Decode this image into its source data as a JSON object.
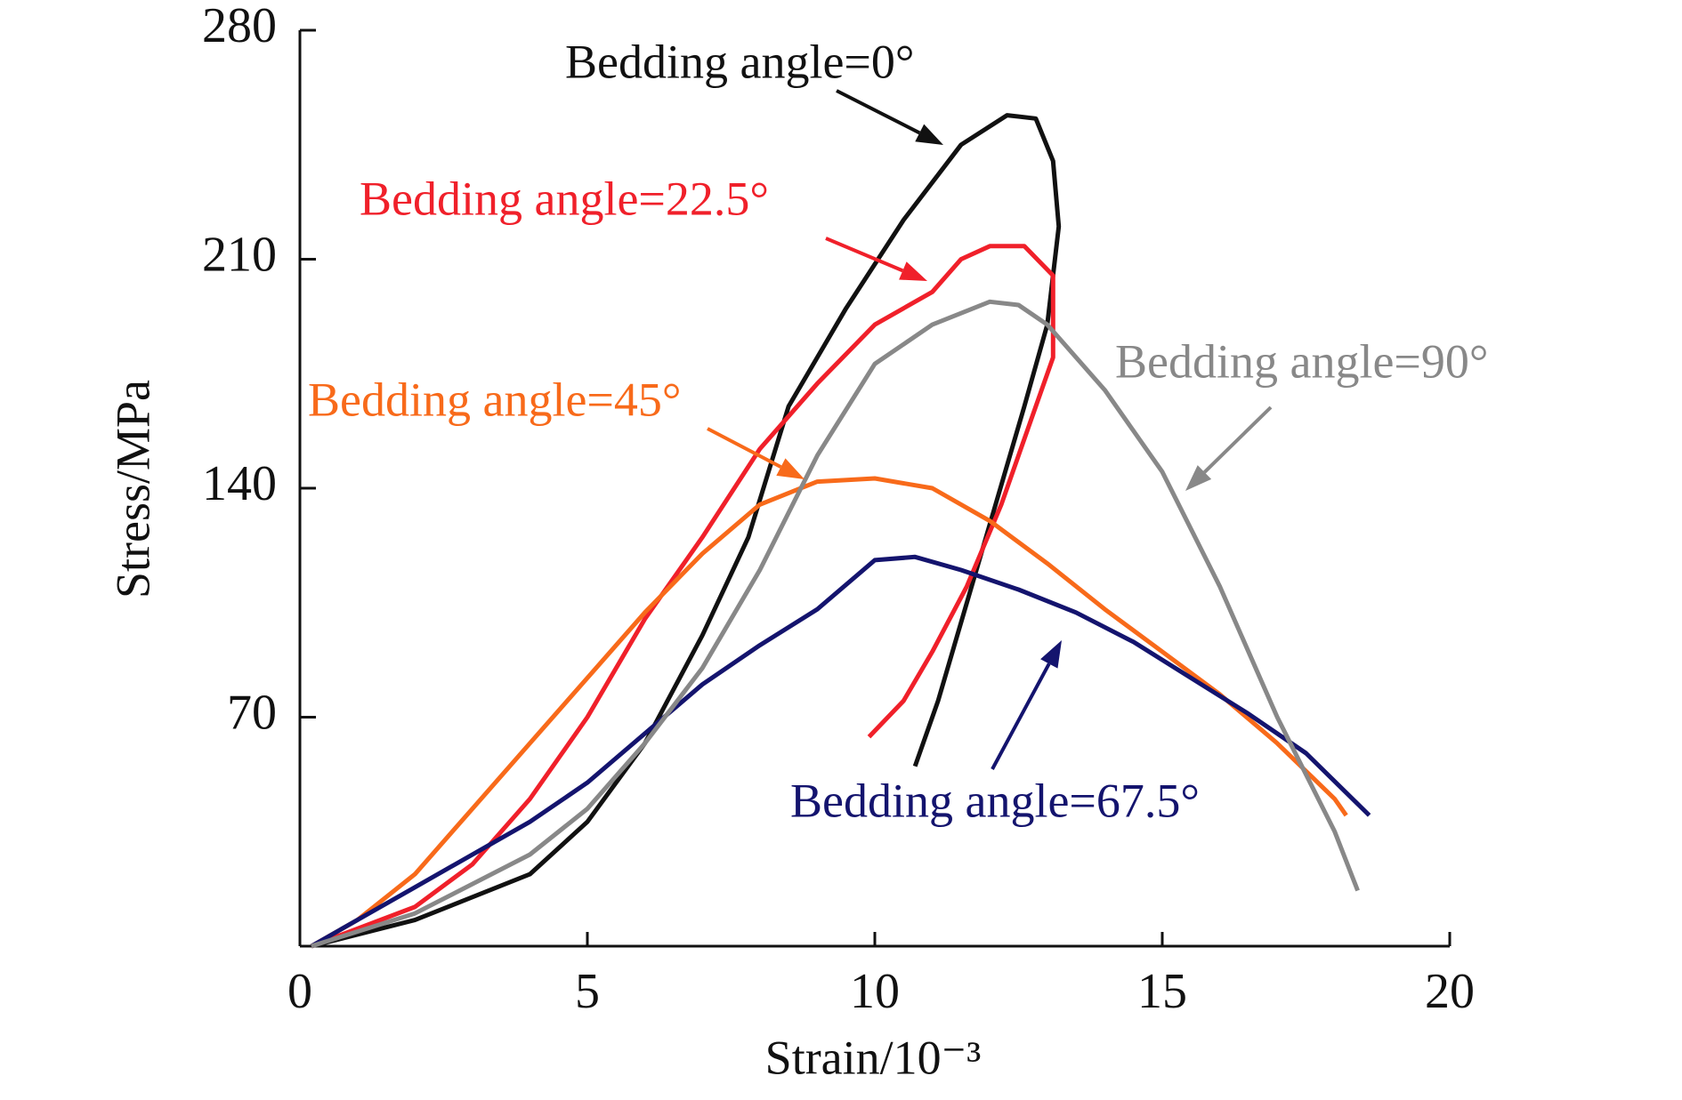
{
  "chart_data": {
    "type": "line",
    "x_label": "Strain/10⁻³",
    "y_label": "Stress/MPa",
    "xlim": [
      0,
      20
    ],
    "xticks": [
      0,
      5,
      10,
      15,
      20
    ],
    "ylim": [
      0,
      280
    ],
    "yticks": [
      70,
      140,
      210,
      280
    ],
    "series": [
      {
        "name": "Bedding angle=0°",
        "color": "#111111",
        "x": [
          0.2,
          2,
          4,
          5,
          6,
          7,
          7.8,
          8.5,
          9.5,
          10.5,
          11.5,
          12.3,
          12.8,
          13.1,
          13.2,
          13.0,
          12.6,
          12.1,
          11.6,
          11.1,
          10.7
        ],
        "values": [
          0,
          8,
          22,
          38,
          62,
          95,
          125,
          165,
          195,
          222,
          245,
          254,
          253,
          240,
          220,
          190,
          165,
          135,
          105,
          75,
          55
        ]
      },
      {
        "name": "Bedding angle=22.5°",
        "color": "#f0202a",
        "x": [
          0.2,
          2,
          3,
          4,
          5,
          6,
          7,
          8,
          9,
          10,
          11,
          11.5,
          12,
          12.6,
          13.1,
          13.1,
          12.7,
          12.2,
          11.6,
          11,
          10.5,
          9.9
        ],
        "values": [
          0,
          12,
          25,
          45,
          70,
          100,
          125,
          152,
          172,
          190,
          200,
          210,
          214,
          214,
          205,
          180,
          160,
          135,
          110,
          90,
          75,
          64
        ]
      },
      {
        "name": "Bedding angle=45°",
        "color": "#f86a1a",
        "x": [
          0.2,
          1,
          2,
          3,
          4,
          5,
          6,
          7,
          8,
          9,
          10,
          11,
          12,
          13,
          14,
          15,
          16,
          17,
          18,
          18.2
        ],
        "values": [
          0,
          8,
          22,
          42,
          62,
          82,
          102,
          120,
          135,
          142,
          143,
          140,
          130,
          117,
          103,
          90,
          77,
          62,
          45,
          40
        ]
      },
      {
        "name": "Bedding angle=67.5°",
        "color": "#14146e",
        "x": [
          0.2,
          2,
          4,
          5,
          6,
          7,
          8,
          9,
          10,
          10.7,
          11.5,
          12.5,
          13.5,
          14.5,
          15.5,
          16.5,
          17.5,
          18.6
        ],
        "values": [
          0,
          18,
          38,
          50,
          65,
          80,
          92,
          103,
          118,
          119,
          115,
          109,
          102,
          93,
          82,
          71,
          59,
          40
        ]
      },
      {
        "name": "Bedding angle=90°",
        "color": "#888888",
        "x": [
          0.2,
          2,
          4,
          5,
          6,
          7,
          8,
          9,
          10,
          11,
          12,
          12.5,
          13,
          14,
          15,
          16,
          17,
          18,
          18.4
        ],
        "values": [
          0,
          10,
          28,
          42,
          62,
          85,
          115,
          150,
          178,
          190,
          197,
          196,
          190,
          170,
          145,
          110,
          70,
          35,
          17
        ]
      }
    ]
  }
}
